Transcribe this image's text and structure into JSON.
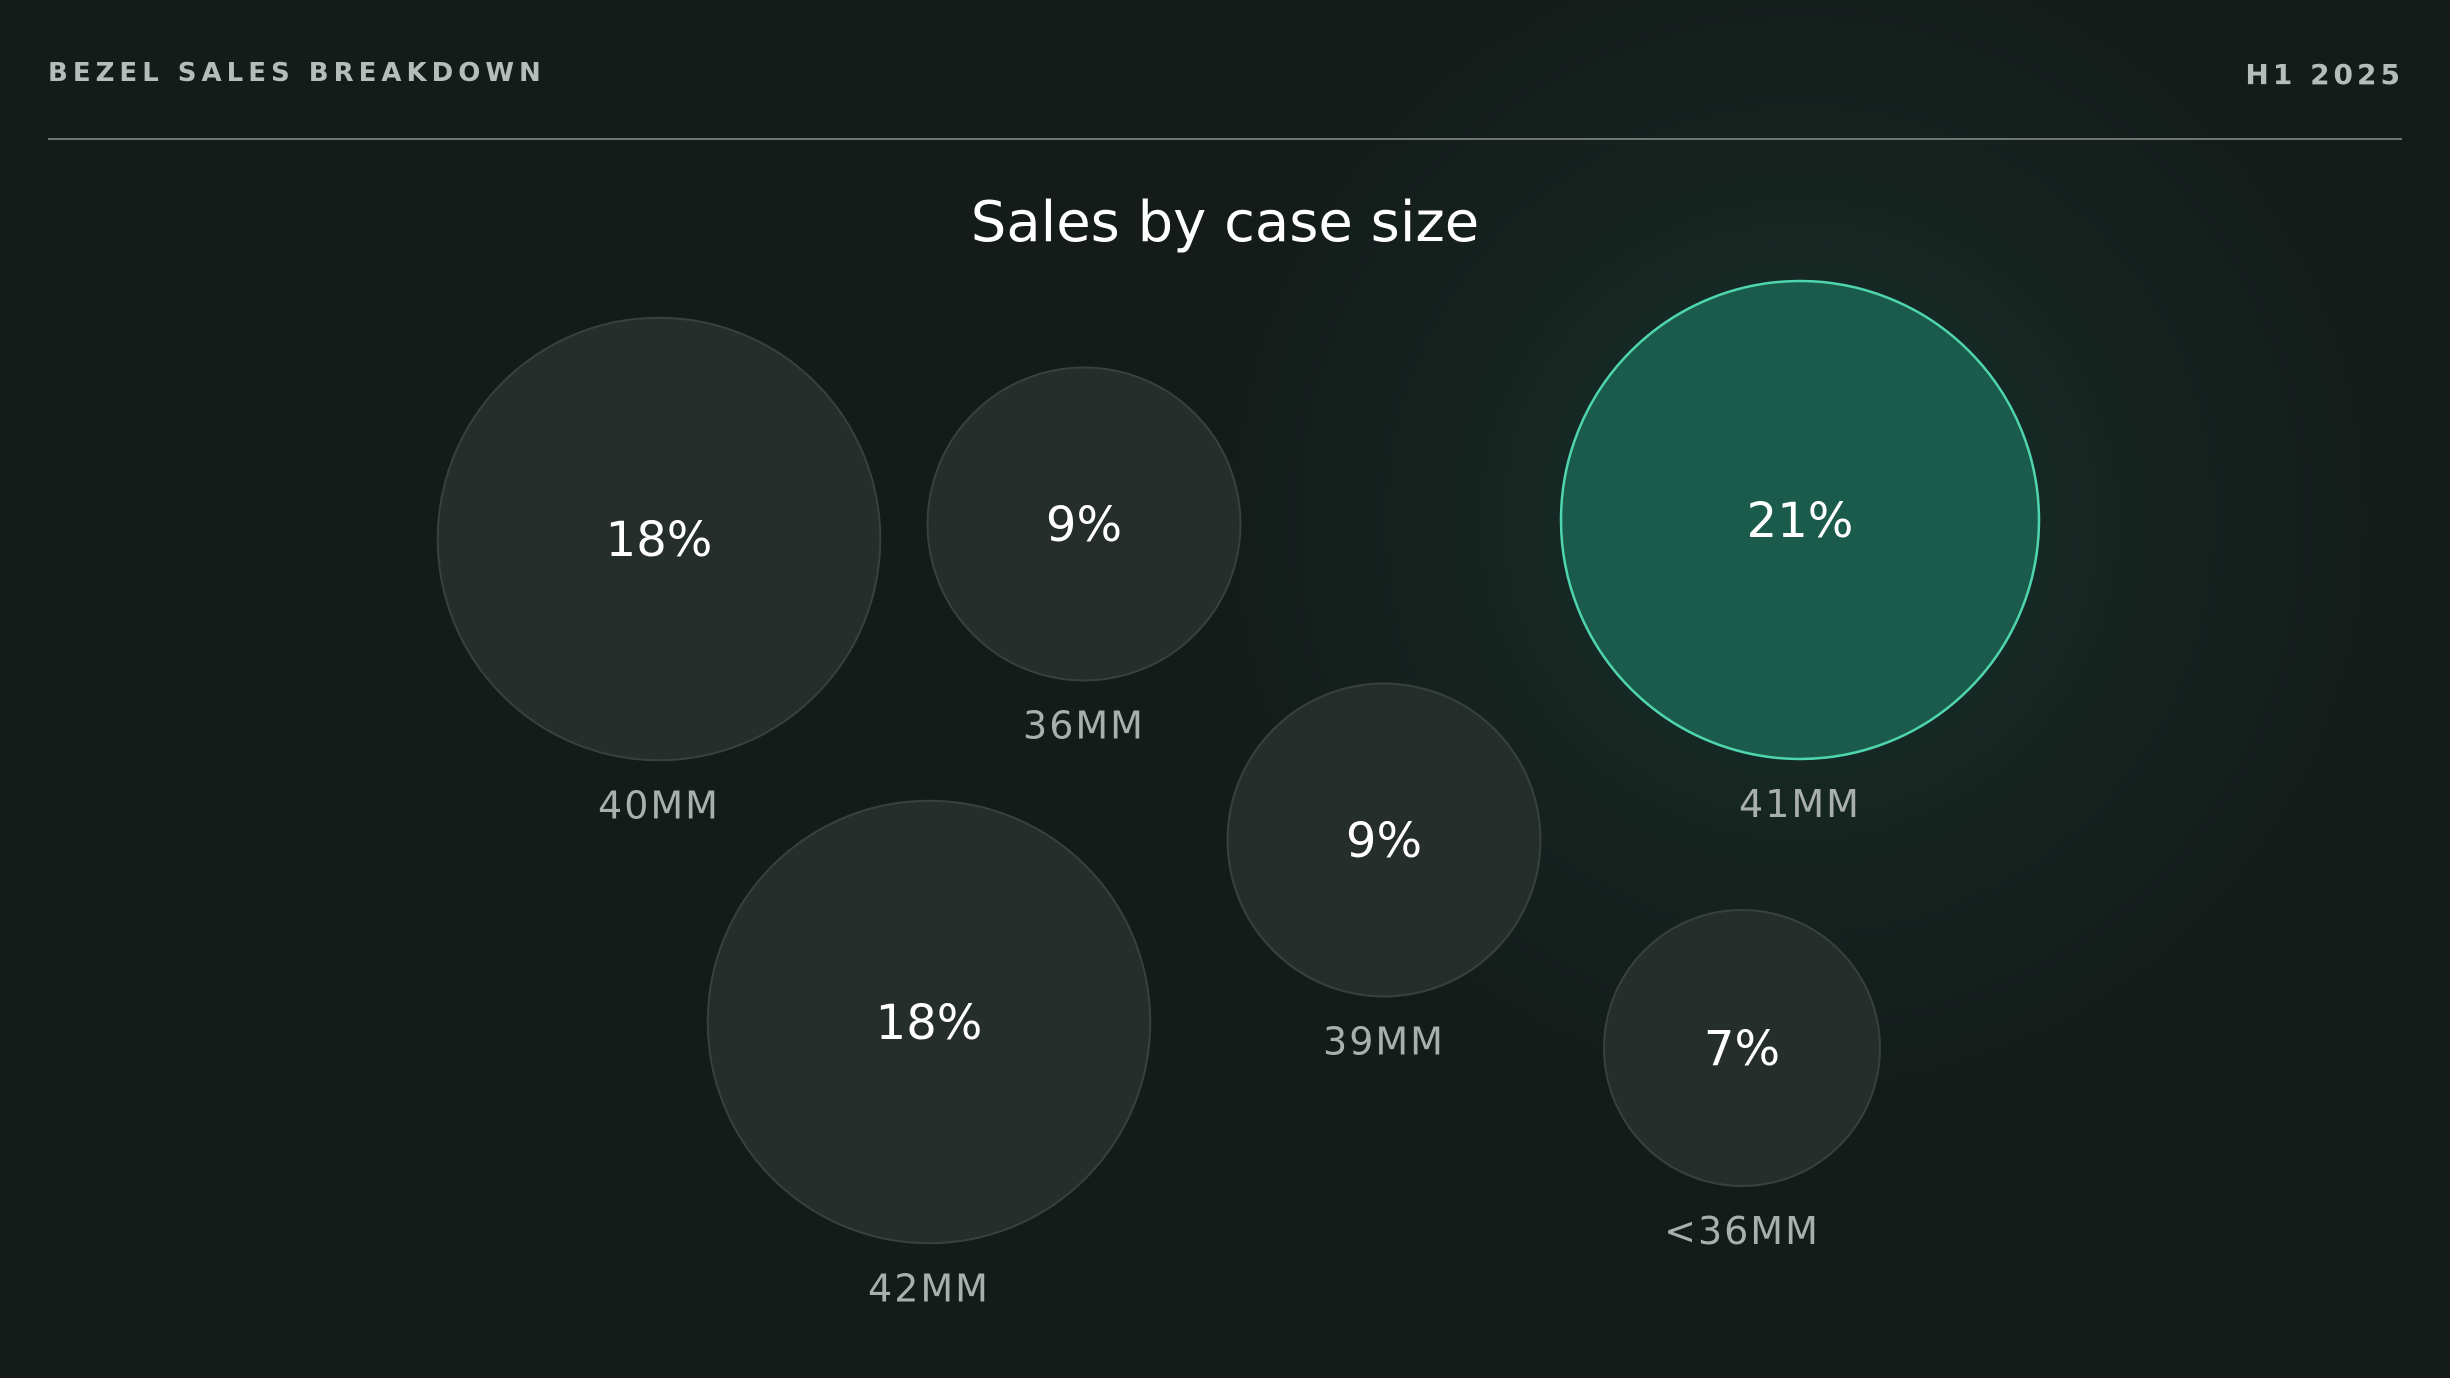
{
  "header": {
    "left": "BEZEL SALES BREAKDOWN",
    "right": "H1 2025"
  },
  "colors": {
    "bubble_fill": "#262e2b",
    "bubble_stroke": "#38413d",
    "highlight_fill": "#1b5b4b",
    "highlight_stroke": "#4fd6ae",
    "value_text": "#ffffff",
    "label_text": "#a9afac"
  },
  "chart_data": {
    "type": "bubble",
    "title": "Sales by case size",
    "unit": "%",
    "items": [
      {
        "label": "40MM",
        "value": 18,
        "display": "18%",
        "highlight": false
      },
      {
        "label": "36MM",
        "value": 9,
        "display": "9%",
        "highlight": false
      },
      {
        "label": "41MM",
        "value": 21,
        "display": "21%",
        "highlight": true
      },
      {
        "label": "39MM",
        "value": 9,
        "display": "9%",
        "highlight": false
      },
      {
        "label": "42MM",
        "value": 18,
        "display": "18%",
        "highlight": false
      },
      {
        "label": "<36MM",
        "value": 7,
        "display": "7%",
        "highlight": false
      }
    ]
  }
}
